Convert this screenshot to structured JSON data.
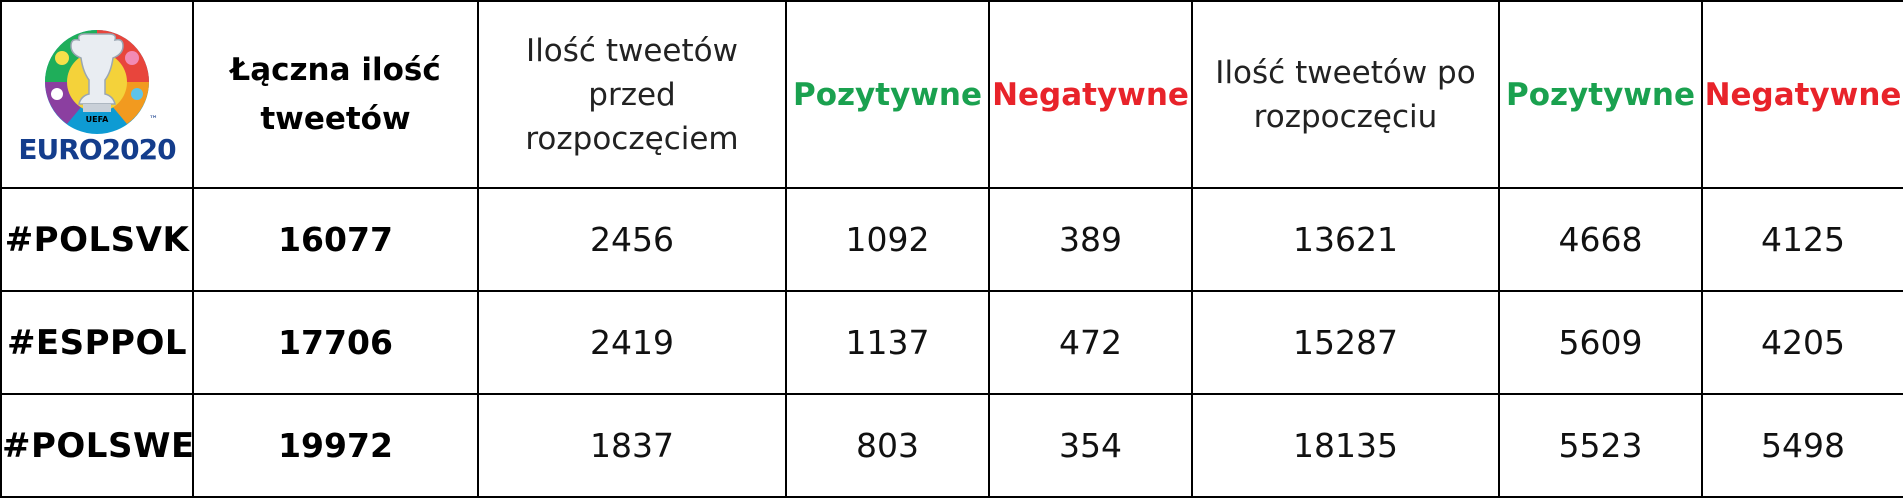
{
  "logo": {
    "wordmark": "EURO2020",
    "small_text": "UEFA",
    "tm": "™"
  },
  "header": {
    "total": "Łączna ilość tweetów",
    "before": "Ilość tweetów przed rozpoczęciem",
    "pos_before": "Pozytywne",
    "neg_before": "Negatywne",
    "after": "Ilość tweetów po rozpoczęciu",
    "pos_after": "Pozytywne",
    "neg_after": "Negatywne"
  },
  "rows": [
    {
      "tag": "#POLSVK",
      "total": "16077",
      "before": "2456",
      "pos_before": "1092",
      "neg_before": "389",
      "after": "13621",
      "pos_after": "4668",
      "neg_after": "4125"
    },
    {
      "tag": "#ESPPOL",
      "total": "17706",
      "before": "2419",
      "pos_before": "1137",
      "neg_before": "472",
      "after": "15287",
      "pos_after": "5609",
      "neg_after": "4205"
    },
    {
      "tag": "#POLSWE",
      "total": "19972",
      "before": "1837",
      "pos_before": "803",
      "neg_before": "354",
      "after": "18135",
      "pos_after": "5523",
      "neg_after": "5498"
    }
  ],
  "colors": {
    "positive": "#1aa14f",
    "negative": "#e8232a",
    "euro_blue": "#143d8c"
  }
}
